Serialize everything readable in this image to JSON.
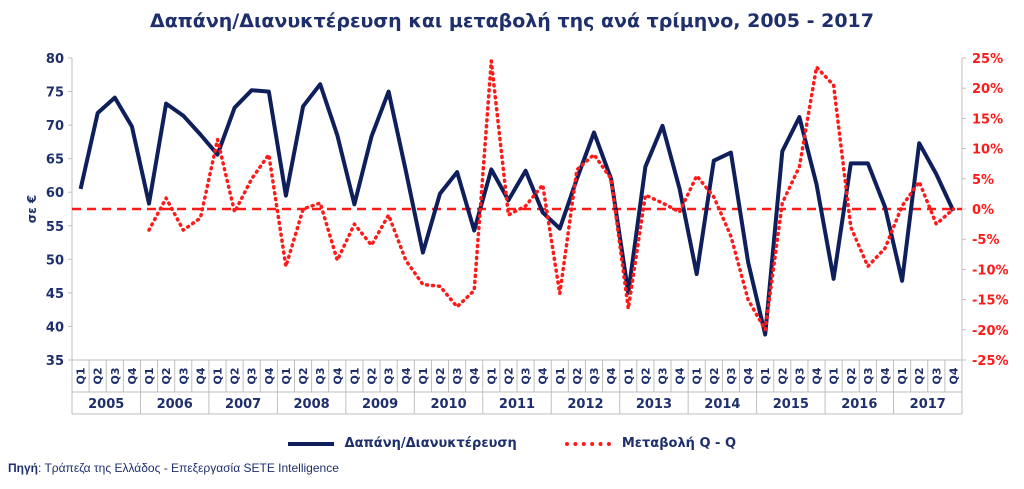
{
  "chart_data": {
    "type": "line",
    "title": "Δαπάνη/Διανυκτέρευση και μεταβολή της ανά τρίμηνο, 2005 - 2017",
    "ylabel": "σε €",
    "ylim": [
      35,
      80
    ],
    "y_ticks": [
      80,
      75,
      70,
      65,
      60,
      55,
      50,
      45,
      40,
      35
    ],
    "y2lim": [
      -25,
      25
    ],
    "y2_ticks": [
      "25%",
      "20%",
      "15%",
      "10%",
      "5%",
      "0%",
      "-5%",
      "-10%",
      "-15%",
      "-20%",
      "-25%"
    ],
    "quarters": [
      "Q1",
      "Q2",
      "Q3",
      "Q4"
    ],
    "years": [
      "2005",
      "2006",
      "2007",
      "2008",
      "2009",
      "2010",
      "2011",
      "2012",
      "2013",
      "2014",
      "2015",
      "2016",
      "2017"
    ],
    "grid": false,
    "legend_position": "bottom",
    "series": [
      {
        "name": "Δαπάνη/Διανυκτέρευση",
        "axis": "left",
        "color": "#0e1f5b",
        "style": "solid",
        "values": [
          60.5,
          71.8,
          74.1,
          69.8,
          58.3,
          73.2,
          71.4,
          68.6,
          65.6,
          72.6,
          75.2,
          75.0,
          59.5,
          72.8,
          76.1,
          68.5,
          58.2,
          68.3,
          75.0,
          63.2,
          51.0,
          59.8,
          63.0,
          54.3,
          63.4,
          58.8,
          63.2,
          57.0,
          54.6,
          62.0,
          68.9,
          62.0,
          45.0,
          63.8,
          69.9,
          60.5,
          47.8,
          64.7,
          65.9,
          49.6,
          38.8,
          66.1,
          71.2,
          61.2,
          47.1,
          64.3,
          64.3,
          57.8,
          46.8,
          67.3,
          62.7,
          57.2
        ]
      },
      {
        "name": "Μεταβολή Q - Q",
        "axis": "right",
        "color": "#ff1a1a",
        "style": "dotted",
        "values": [
          null,
          null,
          null,
          null,
          -3.5,
          1.8,
          -3.5,
          -1.5,
          11.5,
          -0.5,
          5.0,
          9.0,
          -9.5,
          0.0,
          1.0,
          -8.5,
          -2.5,
          -6.0,
          -1.0,
          -8.5,
          -12.5,
          -12.8,
          -16.2,
          -13.5,
          24.5,
          -1.0,
          0.5,
          4.0,
          -14.0,
          6.5,
          9.0,
          5.0,
          -16.5,
          2.3,
          1.0,
          -0.5,
          5.5,
          2.0,
          -4.5,
          -15.0,
          -20.0,
          1.0,
          7.0,
          23.5,
          20.5,
          -3.0,
          -9.5,
          -6.5,
          0.5,
          4.5,
          -2.5,
          0.0
        ]
      }
    ],
    "reference_line": {
      "axis": "right",
      "value": 0,
      "color": "#ff1a1a",
      "style": "dashed"
    }
  },
  "legend": {
    "series1_label": "Δαπάνη/Διανυκτέρευση",
    "series2_label": "Μεταβολή Q - Q"
  },
  "source": {
    "label": "Πηγή",
    "text": ": Τράπεζα της Ελλάδος - Επεξεργασία SETE Intelligence"
  }
}
